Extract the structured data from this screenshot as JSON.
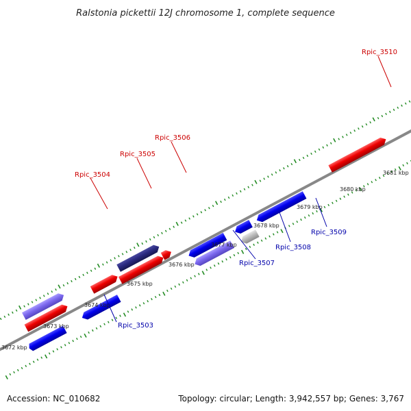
{
  "title": "Ralstonia pickettii 12J chromosome 1, complete sequence",
  "footer": {
    "accession": "Accession: NC_010682",
    "topology": "Topology: circular; Length: 3,942,557 bp; Genes: 3,767"
  },
  "scale_labels": [
    "3672 kbp",
    "3673 kbp",
    "3674 kbp",
    "3675 kbp",
    "3676 kbp",
    "3677 kbp",
    "3678 kbp",
    "3679 kbp",
    "3680 kbp",
    "3681 kbp"
  ],
  "gene_labels": {
    "rpic_3503": "Rpic_3503",
    "rpic_3504": "Rpic_3504",
    "rpic_3505": "Rpic_3505",
    "rpic_3506": "Rpic_3506",
    "rpic_3507": "Rpic_3507",
    "rpic_3508": "Rpic_3508",
    "rpic_3509": "Rpic_3509",
    "rpic_3510": "Rpic_3510"
  },
  "colors": {
    "forward_gene": "#ee0000",
    "reverse_gene": "#0000ee",
    "light_purple": "#7b68ee",
    "dark_purple": "#2a2a80",
    "grey_gene": "#bbbbbb",
    "backbone": "#888888",
    "ticks": "#228b22"
  }
}
